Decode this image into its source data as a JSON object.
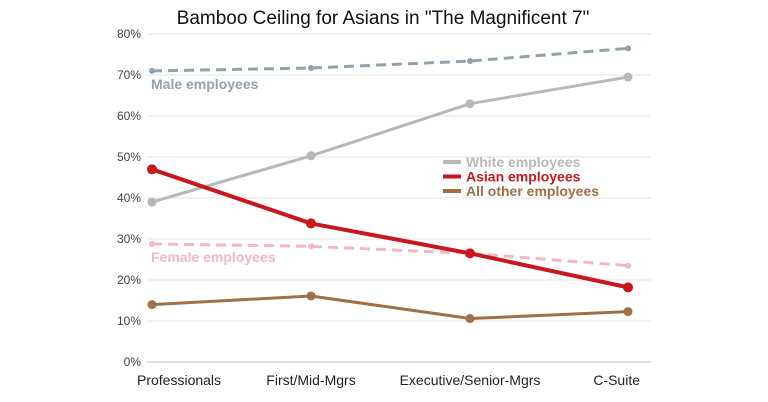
{
  "chart_data": {
    "type": "line",
    "title": "Bamboo Ceiling for Asians in \"The Magnificent 7\"",
    "xlabel": "",
    "ylabel": "",
    "categories": [
      "Professionals",
      "First/Mid-Mgrs",
      "Executive/Senior-Mgrs",
      "C-Suite"
    ],
    "ylim": [
      0,
      80
    ],
    "yticks": [
      "0%",
      "10%",
      "20%",
      "30%",
      "40%",
      "50%",
      "60%",
      "70%",
      "80%"
    ],
    "grid": true,
    "legend_placement": "center-right",
    "series": [
      {
        "name": "Male employees",
        "values": [
          71.0,
          71.7,
          73.4,
          76.5
        ],
        "color": "#8fa2ad",
        "dashed": true,
        "legend": false
      },
      {
        "name": "White employees",
        "values": [
          39.0,
          50.3,
          63.0,
          69.5
        ],
        "color": "#b8b8b8",
        "dashed": false,
        "legend": true
      },
      {
        "name": "Female employees",
        "values": [
          28.8,
          28.2,
          26.5,
          23.5
        ],
        "color": "#f2b8c4",
        "dashed": true,
        "legend": false
      },
      {
        "name": "Asian employees",
        "values": [
          47.0,
          33.8,
          26.5,
          18.2
        ],
        "color": "#c8171f",
        "dashed": false,
        "legend": true
      },
      {
        "name": "All other employees",
        "values": [
          14.0,
          16.1,
          10.6,
          12.3
        ],
        "color": "#a07048",
        "dashed": false,
        "legend": true
      }
    ]
  }
}
